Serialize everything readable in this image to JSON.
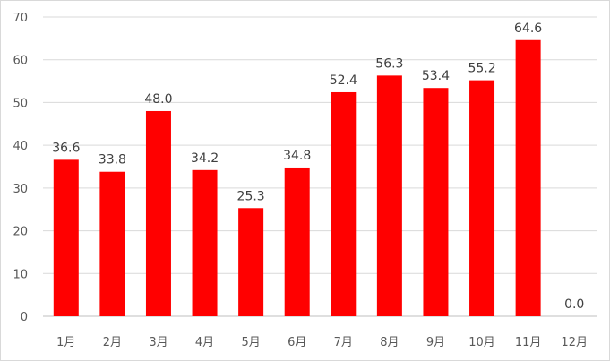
{
  "chart_data": {
    "type": "bar",
    "title": "",
    "xlabel": "",
    "ylabel": "",
    "categories": [
      "1月",
      "2月",
      "3月",
      "4月",
      "5月",
      "6月",
      "7月",
      "8月",
      "9月",
      "10月",
      "11月",
      "12月"
    ],
    "values": [
      36.6,
      33.8,
      48.0,
      34.2,
      25.3,
      34.8,
      52.4,
      56.3,
      53.4,
      55.2,
      64.6,
      0.0
    ],
    "data_labels": [
      "36.6",
      "33.8",
      "48.0",
      "34.2",
      "25.3",
      "34.8",
      "52.4",
      "56.3",
      "53.4",
      "55.2",
      "64.6",
      "0.0"
    ],
    "ylim": [
      0,
      70
    ],
    "yticks": [
      0,
      10,
      20,
      30,
      40,
      50,
      60,
      70
    ],
    "grid": true,
    "legend": "none",
    "colors": {
      "bar": "#ff0000",
      "grid": "#d9d9d9",
      "axis": "#bfbfbf",
      "text": "#595959"
    }
  }
}
